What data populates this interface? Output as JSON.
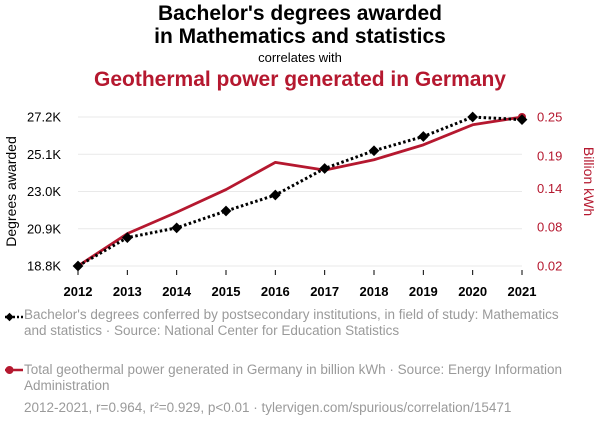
{
  "header": {
    "title_line1": "Bachelor's degrees awarded",
    "title_line2": "in Mathematics and statistics",
    "subtitle": "correlates with",
    "title_secondary": "Geothermal power generated in Germany"
  },
  "colors": {
    "series1": "#000000",
    "series2": "#b5182f",
    "grid": "#e9e9e9",
    "muted_text": "#9a9a9a"
  },
  "chart_data": {
    "type": "line",
    "x": [
      "2012",
      "2013",
      "2014",
      "2015",
      "2016",
      "2017",
      "2018",
      "2019",
      "2020",
      "2021"
    ],
    "y_left": {
      "label": "Degrees awarded",
      "ticks": [
        "18.8K",
        "20.9K",
        "23.0K",
        "25.1K",
        "27.2K"
      ],
      "tick_values": [
        18800,
        20900,
        23000,
        25100,
        27200
      ],
      "range": [
        18800,
        27200
      ]
    },
    "y_right": {
      "label": "Billion kWh",
      "ticks": [
        "0.02",
        "0.08",
        "0.14",
        "0.19",
        "0.25"
      ],
      "tick_values": [
        0.02,
        0.08,
        0.14,
        0.19,
        0.25
      ],
      "range": [
        0.02,
        0.25
      ]
    },
    "series": [
      {
        "axis": "left",
        "style": "dotted",
        "marker": "diamond",
        "values": [
          18800,
          20400,
          20950,
          21900,
          22800,
          24300,
          25300,
          26100,
          27200,
          27050
        ]
      },
      {
        "axis": "right",
        "style": "solid",
        "marker": "none",
        "values": [
          0.02,
          0.07,
          0.103,
          0.138,
          0.18,
          0.168,
          0.184,
          0.207,
          0.238,
          0.25
        ]
      }
    ],
    "grid": true
  },
  "legend": {
    "series1_text": "Bachelor's degrees conferred by postsecondary institutions, in field of study: Mathematics and statistics · Source: National Center for Education Statistics",
    "series2_text": "Total geothermal power generated in Germany in billion kWh · Source: Energy Information Administration"
  },
  "footer": {
    "text": "2012-2021, r=0.964, r²=0.929, p<0.01 · tylervigen.com/spurious/correlation/15471"
  }
}
